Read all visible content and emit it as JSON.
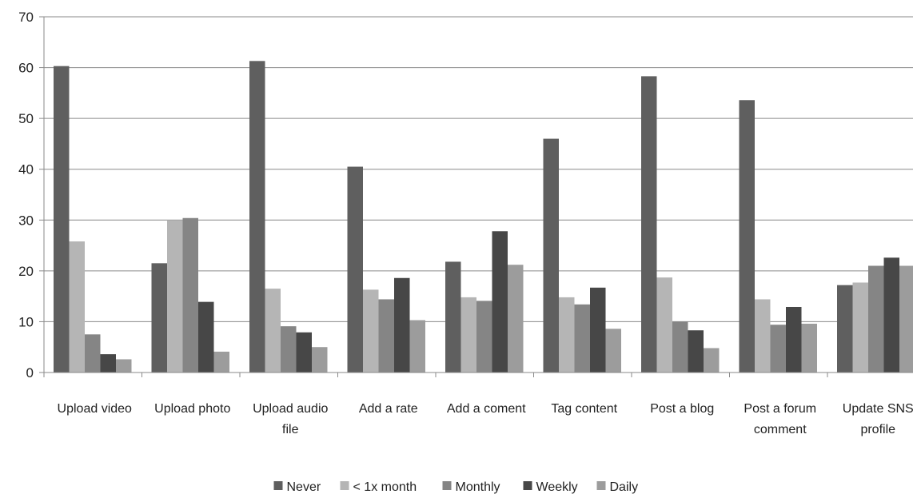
{
  "chart_data": {
    "type": "bar",
    "title": "",
    "xlabel": "",
    "ylabel": "",
    "ylim": [
      0,
      70
    ],
    "yticks": [
      0,
      10,
      20,
      30,
      40,
      50,
      60,
      70
    ],
    "grid": true,
    "legend_position": "bottom",
    "categories": [
      [
        "Upload video"
      ],
      [
        "Upload photo"
      ],
      [
        "Upload audio",
        "file"
      ],
      [
        "Add a rate"
      ],
      [
        "Add a coment"
      ],
      [
        "Tag content"
      ],
      [
        "Post a blog"
      ],
      [
        "Post a forum",
        "comment"
      ],
      [
        "Update SNS",
        "profile"
      ]
    ],
    "series": [
      {
        "name": "Never",
        "color": "#5f5f5f",
        "values": [
          60.3,
          21.5,
          61.3,
          40.5,
          21.8,
          46.0,
          58.3,
          53.6,
          17.2
        ]
      },
      {
        "name": "< 1x month",
        "color": "#b5b5b5",
        "values": [
          25.8,
          30.0,
          16.5,
          16.3,
          14.8,
          14.8,
          18.7,
          14.4,
          17.7
        ]
      },
      {
        "name": "Monthly",
        "color": "#858585",
        "values": [
          7.5,
          30.4,
          9.1,
          14.4,
          14.1,
          13.4,
          10.0,
          9.4,
          21.0
        ]
      },
      {
        "name": "Weekly",
        "color": "#474747",
        "values": [
          3.6,
          13.9,
          7.9,
          18.6,
          27.8,
          16.7,
          8.3,
          12.9,
          22.6
        ]
      },
      {
        "name": "Daily",
        "color": "#9c9c9c",
        "values": [
          2.6,
          4.1,
          5.0,
          10.3,
          21.2,
          8.6,
          4.8,
          9.6,
          21.0
        ]
      }
    ]
  }
}
